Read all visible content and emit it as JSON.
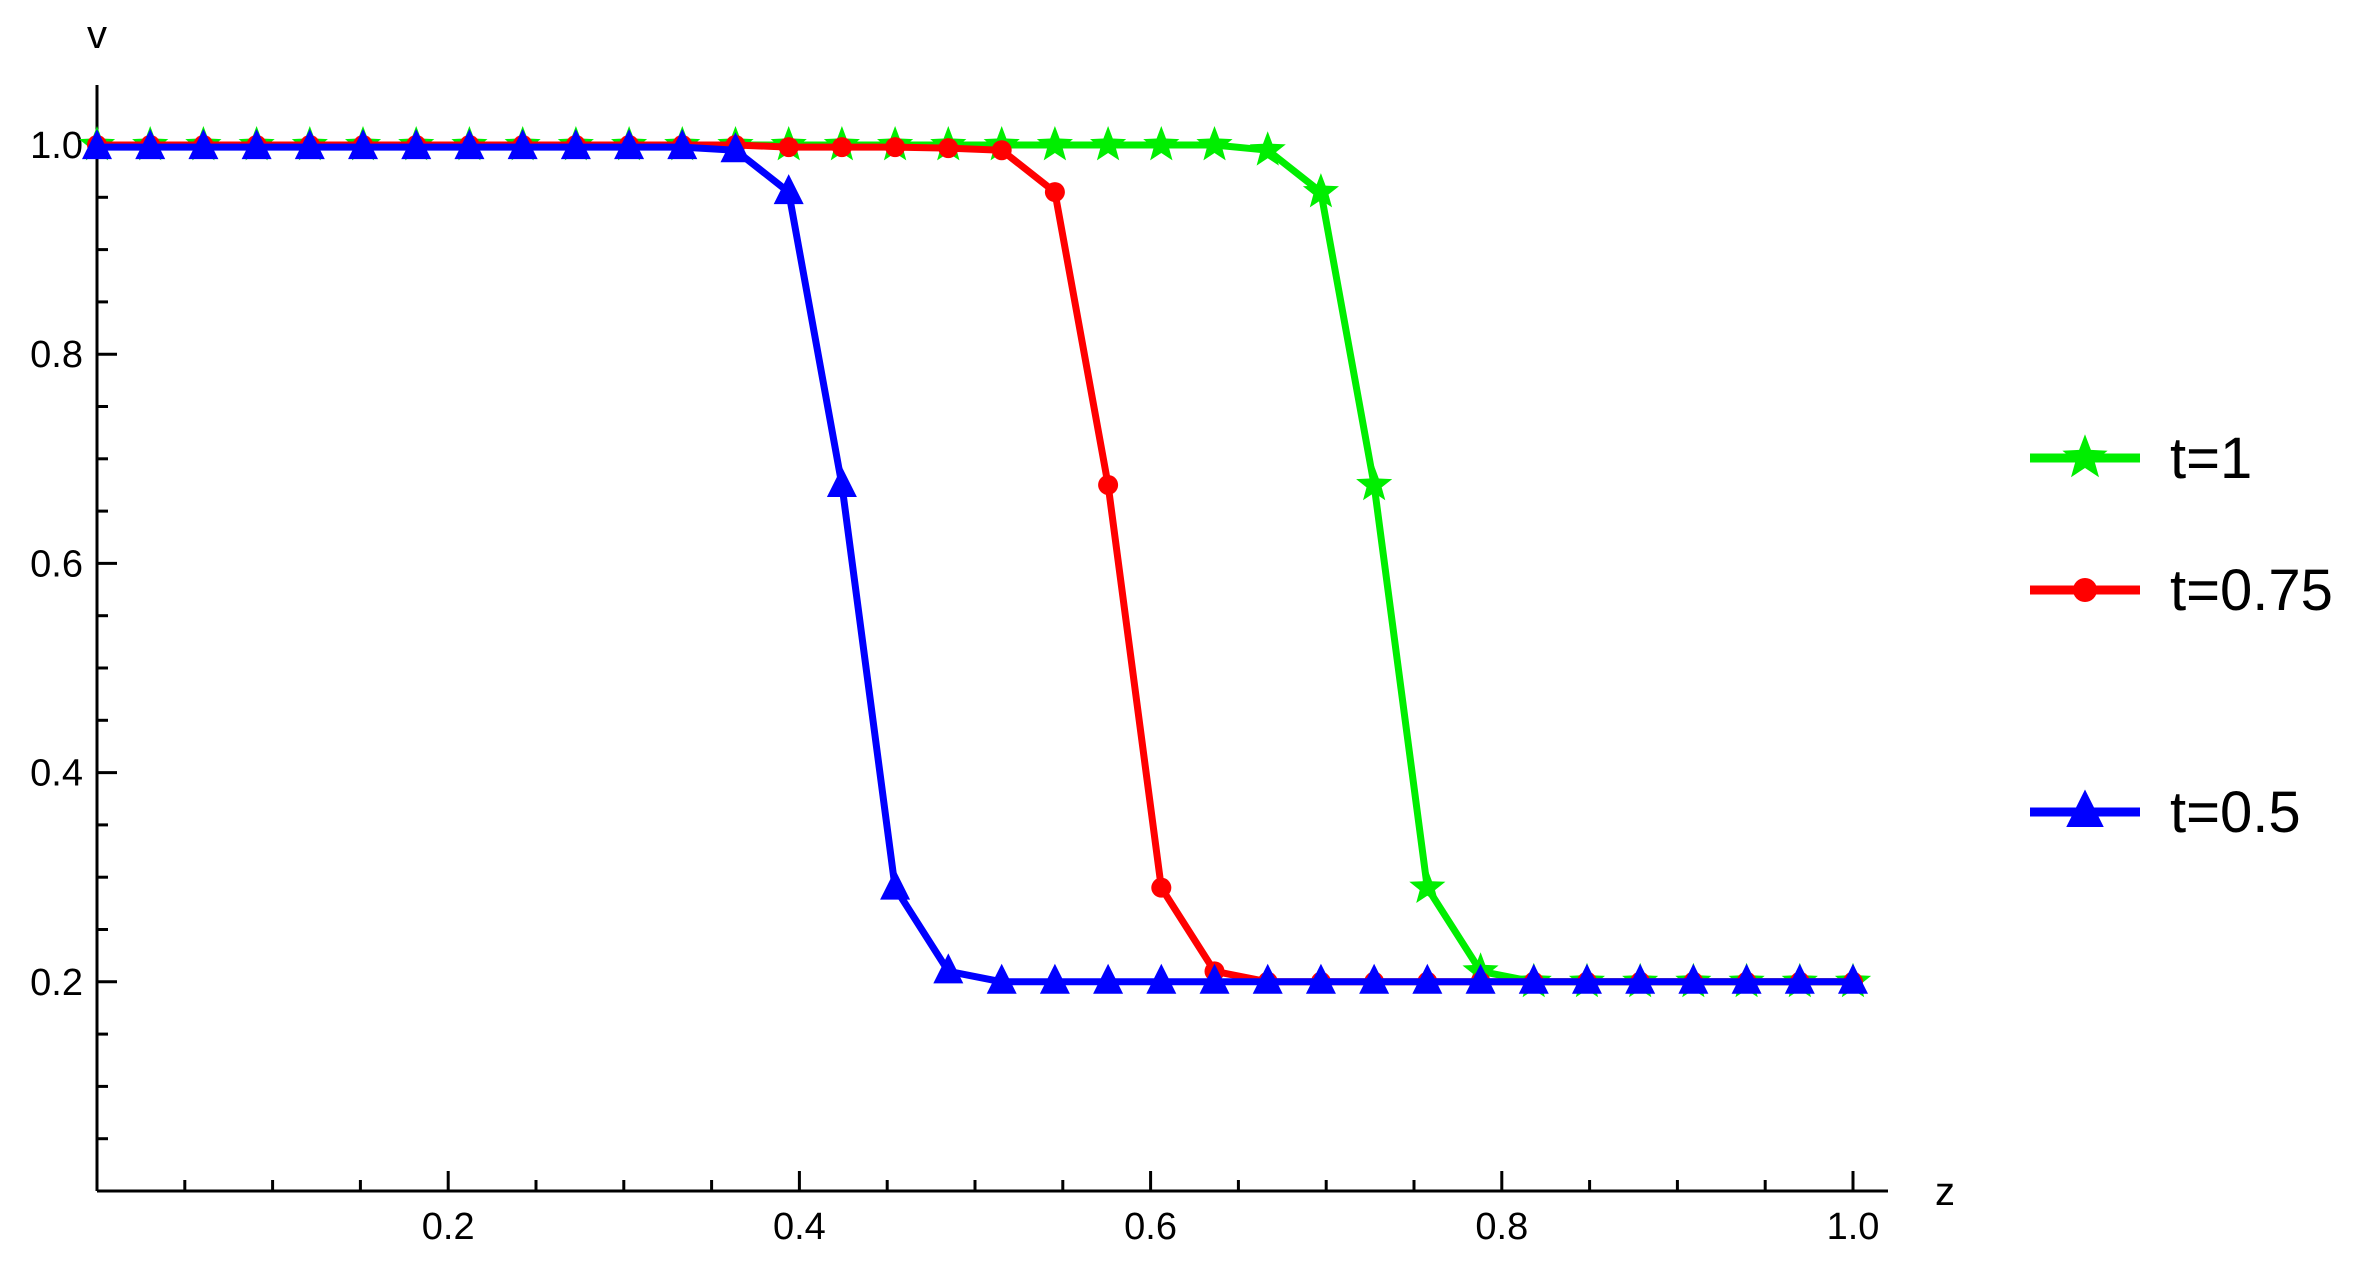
{
  "chart_data": {
    "type": "line",
    "title": "",
    "xlabel": "z",
    "ylabel": "v",
    "xlim": [
      0,
      1.02
    ],
    "ylim": [
      0,
      1.05
    ],
    "grid": false,
    "legend_placement": "right",
    "x_ticks": [
      {
        "value": 0.2,
        "label": "0.2"
      },
      {
        "value": 0.4,
        "label": "0.4"
      },
      {
        "value": 0.6,
        "label": "0.6"
      },
      {
        "value": 0.8,
        "label": "0.8"
      },
      {
        "value": 1.0,
        "label": "1.0"
      }
    ],
    "y_ticks": [
      {
        "value": 0.2,
        "label": "0.2"
      },
      {
        "value": 0.4,
        "label": "0.4"
      },
      {
        "value": 0.6,
        "label": "0.6"
      },
      {
        "value": 0.8,
        "label": "0.8"
      },
      {
        "value": 1.0,
        "label": "1.0"
      }
    ],
    "series": [
      {
        "name": "t=1",
        "color": "#00ee00",
        "marker": "star",
        "x": [
          0,
          0.0303,
          0.0606,
          0.0909,
          0.1212,
          0.1515,
          0.1818,
          0.2121,
          0.2424,
          0.2727,
          0.303,
          0.3333,
          0.3636,
          0.3939,
          0.4242,
          0.4545,
          0.4848,
          0.5152,
          0.5455,
          0.5758,
          0.6061,
          0.6364,
          0.6667,
          0.697,
          0.7273,
          0.7576,
          0.7879,
          0.8182,
          0.8485,
          0.8788,
          0.9091,
          0.9394,
          0.9697,
          1.0
        ],
        "y": [
          1.0,
          1.0,
          1.0,
          1.0,
          1.0,
          1.0,
          1.0,
          1.0,
          1.0,
          1.0,
          1.0,
          1.0,
          1.0,
          1.0,
          1.0,
          1.0,
          1.0,
          1.0,
          1.0,
          1.0,
          1.0,
          1.0,
          0.995,
          0.955,
          0.675,
          0.29,
          0.21,
          0.2,
          0.2,
          0.2,
          0.2,
          0.2,
          0.2,
          0.2
        ]
      },
      {
        "name": "t=0.75",
        "color": "#ff0000",
        "marker": "circle",
        "x": [
          0,
          0.0303,
          0.0606,
          0.0909,
          0.1212,
          0.1515,
          0.1818,
          0.2121,
          0.2424,
          0.2727,
          0.303,
          0.3333,
          0.3636,
          0.3939,
          0.4242,
          0.4545,
          0.4848,
          0.5152,
          0.5455,
          0.5758,
          0.6061,
          0.6364,
          0.6667,
          0.697,
          0.7273,
          0.7576,
          0.7879,
          0.8182,
          0.8485,
          0.8788,
          0.9091,
          0.9394,
          0.9697,
          1.0
        ],
        "y": [
          1.0,
          1.0,
          1.0,
          1.0,
          1.0,
          1.0,
          1.0,
          1.0,
          1.0,
          1.0,
          1.0,
          1.0,
          1.0,
          0.998,
          0.998,
          0.998,
          0.997,
          0.995,
          0.955,
          0.675,
          0.29,
          0.21,
          0.2,
          0.2,
          0.2,
          0.2,
          0.2,
          0.2,
          0.2,
          0.2,
          0.2,
          0.2,
          0.2,
          0.2
        ]
      },
      {
        "name": "t=0.5",
        "color": "#0000ff",
        "marker": "triangle",
        "x": [
          0,
          0.0303,
          0.0606,
          0.0909,
          0.1212,
          0.1515,
          0.1818,
          0.2121,
          0.2424,
          0.2727,
          0.303,
          0.3333,
          0.3636,
          0.3939,
          0.4242,
          0.4545,
          0.4848,
          0.5152,
          0.5455,
          0.5758,
          0.6061,
          0.6364,
          0.6667,
          0.697,
          0.7273,
          0.7576,
          0.7879,
          0.8182,
          0.8485,
          0.8788,
          0.9091,
          0.9394,
          0.9697,
          1.0
        ],
        "y": [
          0.998,
          0.998,
          0.998,
          0.998,
          0.998,
          0.998,
          0.998,
          0.998,
          0.998,
          0.998,
          0.998,
          0.998,
          0.995,
          0.955,
          0.675,
          0.29,
          0.21,
          0.2,
          0.2,
          0.2,
          0.2,
          0.2,
          0.2,
          0.2,
          0.2,
          0.2,
          0.2,
          0.2,
          0.2,
          0.2,
          0.2,
          0.2,
          0.2,
          0.2
        ]
      }
    ]
  }
}
